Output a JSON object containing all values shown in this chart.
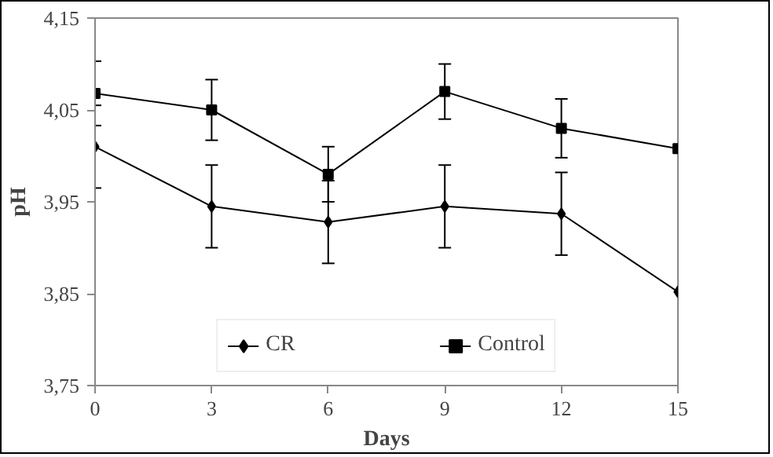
{
  "chart_data": {
    "type": "line",
    "xlabel": "Days",
    "ylabel": "pH",
    "x": [
      0,
      3,
      6,
      9,
      12,
      15
    ],
    "series": [
      {
        "name": "CR",
        "color": "#000000",
        "marker": "diamond",
        "values": [
          4.01,
          3.945,
          3.928,
          3.945,
          3.937,
          3.852
        ],
        "errors": [
          0.045,
          0.045,
          0.045,
          0.045,
          0.045,
          null
        ]
      },
      {
        "name": "Control",
        "color": "#000000",
        "marker": "square",
        "values": [
          4.068,
          4.05,
          3.98,
          4.07,
          4.03,
          4.008
        ],
        "errors": [
          0.035,
          0.033,
          0.03,
          0.03,
          0.032,
          null
        ]
      }
    ],
    "xlim": [
      0,
      15
    ],
    "xticks": [
      0,
      3,
      6,
      9,
      12,
      15
    ],
    "ylim": [
      3.75,
      4.15
    ],
    "yticks": [
      {
        "value": 3.75,
        "label": "3,75"
      },
      {
        "value": 3.85,
        "label": "3,85"
      },
      {
        "value": 3.95,
        "label": "3,95"
      },
      {
        "value": 4.05,
        "label": "4,05"
      },
      {
        "value": 4.15,
        "label": "4,15"
      }
    ],
    "grid": false,
    "legend": "bottom",
    "line_style": "solid"
  }
}
